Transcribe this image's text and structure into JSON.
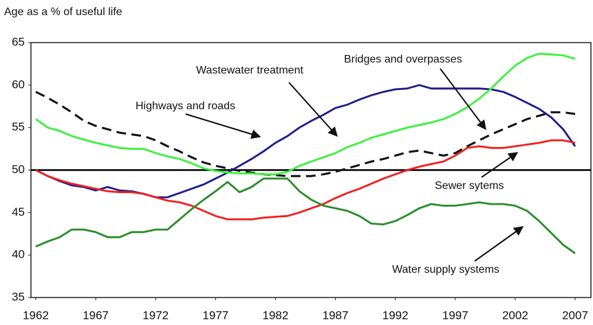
{
  "chart_data": {
    "type": "line",
    "ylabel": "Age as a % of useful life",
    "x": [
      1962,
      1963,
      1964,
      1965,
      1966,
      1967,
      1968,
      1969,
      1970,
      1971,
      1972,
      1973,
      1974,
      1975,
      1976,
      1977,
      1978,
      1979,
      1980,
      1981,
      1982,
      1983,
      1984,
      1985,
      1986,
      1987,
      1988,
      1989,
      1990,
      1991,
      1992,
      1993,
      1994,
      1995,
      1996,
      1997,
      1998,
      1999,
      2000,
      2001,
      2002,
      2003,
      2004,
      2005,
      2006,
      2007
    ],
    "xlim": [
      1962,
      2007
    ],
    "xticks": [
      1962,
      1967,
      1972,
      1977,
      1982,
      1987,
      1992,
      1997,
      2002,
      2007
    ],
    "ylim": [
      35,
      65
    ],
    "yticks": [
      35,
      40,
      45,
      50,
      55,
      60,
      65
    ],
    "hline": 50,
    "series": [
      {
        "name": "Highways and roads",
        "color": "#111111",
        "dash": true,
        "values": [
          59.2,
          58.5,
          57.7,
          56.8,
          55.8,
          55.2,
          54.8,
          54.4,
          54.2,
          54,
          53.5,
          52.8,
          52.2,
          51.5,
          50.9,
          50.5,
          50.2,
          49.9,
          49.7,
          49.5,
          49.4,
          49.3,
          49.3,
          49.3,
          49.5,
          49.8,
          50.2,
          50.6,
          51,
          51.3,
          51.7,
          52.1,
          52.3,
          52,
          51.7,
          52,
          52.8,
          53.5,
          54.2,
          54.8,
          55.4,
          56,
          56.4,
          56.8,
          56.8,
          56.6
        ]
      },
      {
        "name": "Wastewater treatment",
        "color": "#1c1c8c",
        "dash": false,
        "values": [
          50,
          49.3,
          48.7,
          48.2,
          48,
          47.6,
          48,
          47.6,
          47.5,
          47.2,
          46.8,
          46.8,
          47.3,
          47.8,
          48.3,
          49,
          49.7,
          50.5,
          51.3,
          52.2,
          53.2,
          54,
          55,
          55.8,
          56.5,
          57.3,
          57.7,
          58.3,
          58.8,
          59.2,
          59.5,
          59.6,
          60,
          59.6,
          59.6,
          59.6,
          59.6,
          59.6,
          59.5,
          59.2,
          58.6,
          57.9,
          57.2,
          56.2,
          54.8,
          52.8
        ]
      },
      {
        "name": "Bridges and overpasses",
        "color": "#3cf03c",
        "dash": false,
        "values": [
          56,
          55,
          54.6,
          54,
          53.6,
          53.2,
          52.9,
          52.6,
          52.5,
          52.5,
          52,
          51.6,
          51.3,
          50.8,
          50.2,
          49.9,
          49.7,
          49.6,
          49.6,
          49.5,
          49.5,
          49.8,
          50.5,
          51,
          51.5,
          52,
          52.7,
          53.2,
          53.8,
          54.2,
          54.6,
          55,
          55.3,
          55.6,
          56,
          56.6,
          57.4,
          58.4,
          59.6,
          61,
          62.3,
          63.2,
          63.7,
          63.6,
          63.5,
          63.1
        ]
      },
      {
        "name": "Sewer sytems",
        "color": "#f02020",
        "dash": false,
        "values": [
          50,
          49.3,
          48.8,
          48.4,
          48.1,
          47.8,
          47.5,
          47.4,
          47.4,
          47.2,
          46.8,
          46.4,
          46.2,
          45.8,
          45.2,
          44.6,
          44.2,
          44.2,
          44.2,
          44.4,
          44.5,
          44.6,
          45,
          45.5,
          46,
          46.7,
          47.3,
          47.8,
          48.4,
          49,
          49.5,
          50,
          50.4,
          50.7,
          51,
          51.7,
          52.6,
          52.8,
          52.6,
          52.6,
          52.8,
          53,
          53.2,
          53.5,
          53.5,
          53.2
        ]
      },
      {
        "name": "Water supply systems",
        "color": "#2a8c2a",
        "dash": false,
        "values": [
          41,
          41.6,
          42.1,
          43,
          43,
          42.7,
          42.1,
          42.1,
          42.7,
          42.7,
          43,
          43,
          44.2,
          45.4,
          46.5,
          47.5,
          48.6,
          47.4,
          48,
          49,
          49,
          49,
          47.5,
          46.5,
          45.8,
          45.5,
          45.2,
          44.6,
          43.7,
          43.6,
          44,
          44.7,
          45.5,
          46,
          45.8,
          45.8,
          46,
          46.2,
          46,
          46,
          45.8,
          45.2,
          44,
          42.6,
          41.2,
          40.2
        ]
      }
    ]
  }
}
